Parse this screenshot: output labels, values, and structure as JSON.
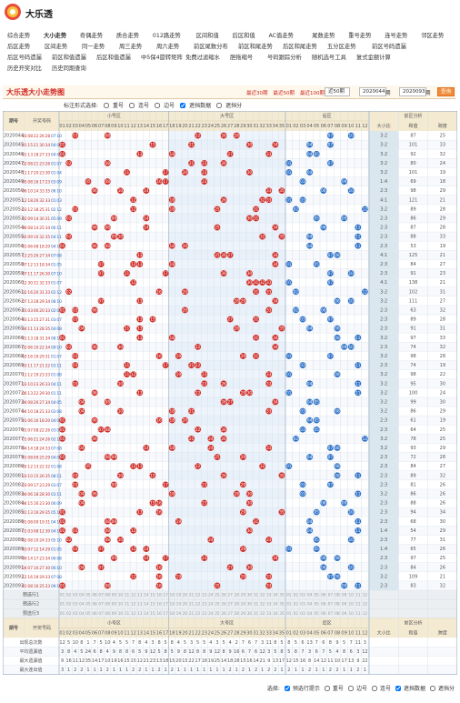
{
  "header": {
    "title": "大乐透"
  },
  "nav": [
    [
      "综合走势",
      "大小走势",
      "奇偶走势",
      "质合走势",
      "012路走势",
      "区间和值",
      "后区和值",
      "AC值走势",
      "尾数走势",
      "重号走势",
      "连号走势",
      "邻区走势"
    ],
    [
      "后区走势",
      "区间走势",
      "同一走势",
      "周三走势",
      "周六走势",
      "前区尾数分布",
      "前区和尾走势",
      "后区和尾走势",
      "五分区走势",
      "前区号码遗漏"
    ],
    [
      "后区号码遗漏",
      "前区和值遗漏",
      "后区和值遗漏",
      "中5保4旋转矩阵",
      "免费过滤缩水",
      "胆拖缩号",
      "号码跟踪分析",
      "随机选号工具",
      "复式金额计算"
    ],
    [
      "历史开奖对比",
      "历史同期查询"
    ]
  ],
  "toolbar": {
    "title": "大乐透大小走势图",
    "recent": [
      "最近30期",
      "最近50期",
      "最近100期"
    ],
    "select": "近50期",
    "from": "2020044",
    "to": "2020093",
    "unit": "期",
    "button": "查询"
  },
  "options": {
    "label": "标注形式选择:",
    "items": [
      {
        "text": "重号",
        "checked": false
      },
      {
        "text": "连号",
        "checked": false
      },
      {
        "text": "边号",
        "checked": false
      },
      {
        "text": "遮挡数据",
        "checked": true
      },
      {
        "text": "遮挡分",
        "checked": false
      }
    ]
  },
  "headers": {
    "issue": "期号",
    "numbers": "开奖号码",
    "small": "小号区",
    "big": "大号区",
    "back": "后区",
    "analysis": "前区分析",
    "analysis_cols": [
      "大小比",
      "和值",
      "跨度"
    ]
  },
  "front_cols": [
    "01",
    "02",
    "03",
    "04",
    "05",
    "06",
    "07",
    "08",
    "09",
    "10",
    "11",
    "12",
    "13",
    "14",
    "15",
    "16",
    "17",
    "18",
    "19",
    "20",
    "21",
    "22",
    "23",
    "24",
    "25",
    "26",
    "27",
    "28",
    "29",
    "30",
    "31",
    "32",
    "33",
    "34",
    "35"
  ],
  "back_cols": [
    "01",
    "02",
    "03",
    "04",
    "05",
    "06",
    "07",
    "08",
    "09",
    "10",
    "11",
    "12"
  ],
  "rows": [
    [
      "2020044",
      [
        "03",
        "08",
        "22",
        "26",
        "28"
      ],
      [
        "07",
        "10"
      ],
      "3:2",
      87,
      25
    ],
    [
      "2020045",
      [
        "01",
        "15",
        "21",
        "30",
        "34"
      ],
      [
        "04",
        "07"
      ],
      "3:2",
      101,
      33
    ],
    [
      "2020046",
      [
        "01",
        "13",
        "18",
        "27",
        "33"
      ],
      [
        "04",
        "05"
      ],
      "3:2",
      92,
      32
    ],
    [
      "2020047",
      [
        "02",
        "08",
        "21",
        "23",
        "26"
      ],
      [
        "01",
        "07"
      ],
      "3:2",
      80,
      24
    ],
    [
      "2020048",
      [
        "11",
        "17",
        "20",
        "23",
        "30"
      ],
      [
        "01",
        "04"
      ],
      "3:2",
      101,
      19
    ],
    [
      "2020049",
      [
        "05",
        "08",
        "16",
        "17",
        "23"
      ],
      [
        "03",
        "09"
      ],
      "1:4",
      69,
      18
    ],
    [
      "2020050",
      [
        "06",
        "10",
        "14",
        "33",
        "35"
      ],
      [
        "06",
        "10"
      ],
      "2:3",
      98,
      29
    ],
    [
      "2020051",
      [
        "12",
        "18",
        "26",
        "32",
        "33"
      ],
      [
        "01",
        "03"
      ],
      "4:1",
      121,
      21
    ],
    [
      "2020052",
      [
        "03",
        "12",
        "18",
        "25",
        "31"
      ],
      [
        "02",
        "12"
      ],
      "3:2",
      89,
      28
    ],
    [
      "2020053",
      [
        "02",
        "09",
        "14",
        "30",
        "31"
      ],
      [
        "05",
        "09"
      ],
      "2:3",
      86,
      29
    ],
    [
      "2020054",
      [
        "06",
        "08",
        "14",
        "25",
        "34"
      ],
      [
        "06",
        "11"
      ],
      "2:3",
      87,
      28
    ],
    [
      "2020055",
      [
        "02",
        "09",
        "10",
        "32",
        "35"
      ],
      [
        "04",
        "11"
      ],
      "2:3",
      88,
      33
    ],
    [
      "2020056",
      [
        "01",
        "06",
        "08",
        "18",
        "20"
      ],
      [
        "04",
        "11"
      ],
      "2:3",
      53,
      19
    ],
    [
      "2020057",
      [
        "13",
        "25",
        "26",
        "27",
        "34"
      ],
      [
        "07",
        "08"
      ],
      "4:1",
      125,
      21
    ],
    [
      "2020058",
      [
        "07",
        "12",
        "13",
        "18",
        "34"
      ],
      [
        "01",
        "05"
      ],
      "2:3",
      84,
      27
    ],
    [
      "2020059",
      [
        "07",
        "11",
        "17",
        "26",
        "30"
      ],
      [
        "07",
        "10"
      ],
      "2:3",
      91,
      23
    ],
    [
      "2020060",
      [
        "12",
        "30",
        "31",
        "32",
        "33"
      ],
      [
        "01",
        "07"
      ],
      "4:1",
      138,
      21
    ],
    [
      "2020061",
      [
        "02",
        "16",
        "20",
        "31",
        "33"
      ],
      [
        "02",
        "12"
      ],
      "3:2",
      102,
      31
    ],
    [
      "2020062",
      [
        "07",
        "13",
        "28",
        "29",
        "34"
      ],
      [
        "08",
        "10"
      ],
      "3:2",
      111,
      27
    ],
    [
      "2020063",
      [
        "01",
        "03",
        "06",
        "20",
        "33"
      ],
      [
        "02",
        "06"
      ],
      "2:3",
      63,
      32
    ],
    [
      "2020064",
      [
        "03",
        "13",
        "15",
        "27",
        "31"
      ],
      [
        "03",
        "07"
      ],
      "2:3",
      89,
      28
    ],
    [
      "2020065",
      [
        "04",
        "11",
        "13",
        "28",
        "35"
      ],
      [
        "04",
        "08"
      ],
      "2:3",
      91,
      31
    ],
    [
      "2020066",
      [
        "01",
        "13",
        "18",
        "31",
        "34"
      ],
      [
        "08",
        "11"
      ],
      "3:2",
      97,
      33
    ],
    [
      "2020067",
      [
        "02",
        "06",
        "10",
        "22",
        "34"
      ],
      [
        "09",
        "10"
      ],
      "2:3",
      74,
      32
    ],
    [
      "2020068",
      [
        "03",
        "16",
        "19",
        "29",
        "31"
      ],
      [
        "01",
        "07"
      ],
      "3:2",
      98,
      28
    ],
    [
      "2020069",
      [
        "03",
        "11",
        "17",
        "21",
        "22"
      ],
      [
        "03",
        "11"
      ],
      "2:3",
      74,
      19
    ],
    [
      "2020070",
      [
        "11",
        "12",
        "19",
        "23",
        "33"
      ],
      [
        "01",
        "08"
      ],
      "3:2",
      98,
      22
    ],
    [
      "2020071",
      [
        "03",
        "10",
        "23",
        "26",
        "33"
      ],
      [
        "04",
        "11"
      ],
      "3:2",
      95,
      30
    ],
    [
      "2020072",
      [
        "06",
        "13",
        "22",
        "29",
        "30"
      ],
      [
        "01",
        "11"
      ],
      "3:2",
      100,
      24
    ],
    [
      "2020073",
      [
        "04",
        "08",
        "26",
        "27",
        "34"
      ],
      [
        "04",
        "05"
      ],
      "3:2",
      99,
      30
    ],
    [
      "2020074",
      [
        "04",
        "10",
        "18",
        "21",
        "33"
      ],
      [
        "03",
        "08"
      ],
      "3:2",
      86,
      29
    ],
    [
      "2020075",
      [
        "01",
        "06",
        "16",
        "18",
        "20"
      ],
      [
        "04",
        "05"
      ],
      "2:3",
      61,
      19
    ],
    [
      "2020076",
      [
        "01",
        "07",
        "08",
        "22",
        "26"
      ],
      [
        "03",
        "05"
      ],
      "2:3",
      64,
      25
    ],
    [
      "2020077",
      [
        "01",
        "06",
        "21",
        "24",
        "26"
      ],
      [
        "02",
        "12"
      ],
      "3:2",
      78,
      25
    ],
    [
      "2020078",
      [
        "04",
        "14",
        "18",
        "24",
        "33"
      ],
      [
        "07",
        "08"
      ],
      "3:2",
      93,
      29
    ],
    [
      "2020079",
      [
        "01",
        "08",
        "09",
        "25",
        "29"
      ],
      [
        "04",
        "07"
      ],
      "2:3",
      72,
      28
    ],
    [
      "2020080",
      [
        "05",
        "12",
        "13",
        "22",
        "32"
      ],
      [
        "01",
        "08"
      ],
      "2:3",
      84,
      27
    ],
    [
      "2020081",
      [
        "03",
        "10",
        "15",
        "26",
        "35"
      ],
      [
        "08",
        "11"
      ],
      "2:3",
      89,
      32
    ],
    [
      "2020082",
      [
        "03",
        "09",
        "17",
        "23",
        "29"
      ],
      [
        "03",
        "07"
      ],
      "2:3",
      81,
      26
    ],
    [
      "2020083",
      [
        "04",
        "06",
        "18",
        "28",
        "30"
      ],
      [
        "03",
        "11"
      ],
      "3:2",
      86,
      26
    ],
    [
      "2020084",
      [
        "04",
        "15",
        "16",
        "23",
        "30"
      ],
      [
        "06",
        "09"
      ],
      "2:3",
      88,
      26
    ],
    [
      "2020085",
      [
        "01",
        "13",
        "16",
        "29",
        "35"
      ],
      [
        "05",
        "10"
      ],
      "2:3",
      94,
      34
    ],
    [
      "2020086",
      [
        "01",
        "08",
        "09",
        "19",
        "31"
      ],
      [
        "04",
        "11"
      ],
      "2:3",
      68,
      30
    ],
    [
      "2020087",
      [
        "01",
        "03",
        "08",
        "12",
        "30"
      ],
      [
        "04",
        "11"
      ],
      "1:4",
      54,
      29
    ],
    [
      "2020088",
      [
        "02",
        "08",
        "10",
        "24",
        "33"
      ],
      [
        "05",
        "10"
      ],
      "2:3",
      77,
      31
    ],
    [
      "2020089",
      [
        "03",
        "07",
        "12",
        "14",
        "29"
      ],
      [
        "01",
        "05"
      ],
      "1:4",
      65,
      26
    ],
    [
      "2020090",
      [
        "09",
        "14",
        "17",
        "23",
        "34"
      ],
      [
        "06",
        "08"
      ],
      "2:3",
      97,
      25
    ],
    [
      "2020091",
      [
        "04",
        "07",
        "16",
        "27",
        "30"
      ],
      [
        "06",
        "10"
      ],
      "2:3",
      84,
      26
    ],
    [
      "2020092",
      [
        "12",
        "16",
        "19",
        "29",
        "33"
      ],
      [
        "07",
        "08"
      ],
      "3:2",
      109,
      21
    ],
    [
      "2020093",
      [
        "01",
        "08",
        "16",
        "25",
        "33"
      ],
      [
        "09",
        "11"
      ],
      "2:3",
      83,
      32
    ]
  ],
  "presets": [
    "预选行1",
    "预选行2",
    "预选行3"
  ],
  "stats": [
    {
      "label": "出现总次数",
      "values": [
        12,
        5,
        10,
        8,
        1,
        7,
        5,
        10,
        4,
        5,
        5,
        7,
        8,
        4,
        3,
        8,
        5,
        8,
        4,
        5,
        3,
        5,
        5,
        4,
        3,
        5,
        4,
        2,
        7,
        6,
        7,
        3,
        11,
        8,
        5,
        8,
        5,
        6,
        13,
        7,
        6,
        8,
        9,
        5,
        7,
        11,
        3
      ]
    },
    {
      "label": "平均遗漏值",
      "values": [
        3,
        8,
        4,
        5,
        24,
        6,
        8,
        4,
        9,
        8,
        8,
        6,
        5,
        9,
        12,
        5,
        8,
        5,
        9,
        8,
        12,
        8,
        8,
        9,
        12,
        8,
        9,
        16,
        6,
        7,
        6,
        12,
        3,
        5,
        8,
        5,
        8,
        7,
        3,
        6,
        7,
        5,
        4,
        8,
        6,
        3,
        12
      ]
    },
    {
      "label": "最大遗漏值",
      "values": [
        9,
        16,
        11,
        12,
        35,
        14,
        17,
        10,
        19,
        16,
        15,
        15,
        12,
        21,
        23,
        13,
        18,
        15,
        20,
        15,
        22,
        17,
        18,
        19,
        25,
        14,
        18,
        28,
        15,
        16,
        14,
        21,
        9,
        13,
        17,
        12,
        15,
        16,
        8,
        14,
        12,
        11,
        10,
        17,
        13,
        9,
        22
      ]
    },
    {
      "label": "最大连出值",
      "values": [
        3,
        1,
        2,
        2,
        1,
        1,
        1,
        2,
        1,
        1,
        1,
        2,
        2,
        1,
        1,
        2,
        1,
        2,
        1,
        1,
        1,
        1,
        1,
        1,
        1,
        1,
        2,
        1,
        2,
        1,
        2,
        1,
        2,
        2,
        1,
        2,
        1,
        1,
        2,
        1,
        1,
        2,
        2,
        1,
        1,
        2,
        1
      ]
    }
  ],
  "footer": {
    "label": "选择:",
    "items": [
      {
        "text": "预选行提示",
        "checked": true
      },
      {
        "text": "重号",
        "checked": false
      },
      {
        "text": "边号",
        "checked": false
      },
      {
        "text": "连号",
        "checked": false
      },
      {
        "text": "遮挡数据",
        "checked": true
      },
      {
        "text": "遮挡分",
        "checked": false
      }
    ]
  }
}
